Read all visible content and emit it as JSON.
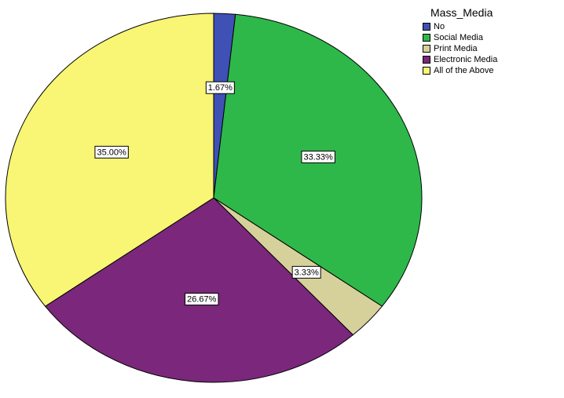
{
  "chart_data": {
    "type": "pie",
    "legend_title": "Mass_Media",
    "legend_position": "top-right",
    "slices": [
      {
        "name": "No",
        "value": 1.67,
        "label": "1.67%",
        "color": "#3f51b5"
      },
      {
        "name": "Social Media",
        "value": 33.33,
        "label": "33.33%",
        "color": "#2eb84a"
      },
      {
        "name": "Print Media",
        "value": 3.33,
        "label": "3.33%",
        "color": "#d6d09b"
      },
      {
        "name": "Electronic Media",
        "value": 26.67,
        "label": "26.67%",
        "color": "#7b277b"
      },
      {
        "name": "All of the Above",
        "value": 35.0,
        "label": "35.00%",
        "color": "#f9f575"
      }
    ]
  }
}
